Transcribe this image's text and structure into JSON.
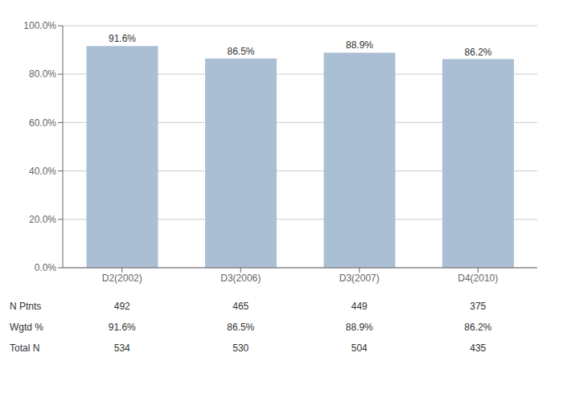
{
  "chart_data": {
    "type": "bar",
    "categories": [
      "D2(2002)",
      "D3(2006)",
      "D3(2007)",
      "D4(2010)"
    ],
    "values": [
      91.6,
      86.5,
      88.9,
      86.2
    ],
    "value_labels": [
      "91.6%",
      "86.5%",
      "88.9%",
      "86.2%"
    ],
    "data_labels": true,
    "color": "#abbfd4",
    "ylim": [
      0,
      100
    ],
    "yticks": [
      {
        "value": 0,
        "label": "0.0%"
      },
      {
        "value": 20,
        "label": "20.0%"
      },
      {
        "value": 40,
        "label": "40.0%"
      },
      {
        "value": 60,
        "label": "60.0%"
      },
      {
        "value": 80,
        "label": "80.0%"
      },
      {
        "value": 100,
        "label": "100.0%"
      }
    ],
    "grid": true,
    "table": [
      {
        "label": "N Ptnts",
        "values": [
          492,
          465,
          449,
          375
        ]
      },
      {
        "label": "Wgtd %",
        "values": [
          91.6,
          86.5,
          88.9,
          86.2
        ],
        "value_labels": [
          "91.6%",
          "86.5%",
          "88.9%",
          "86.2%"
        ]
      },
      {
        "label": "Total N",
        "values": [
          534,
          530,
          504,
          435
        ]
      }
    ]
  }
}
